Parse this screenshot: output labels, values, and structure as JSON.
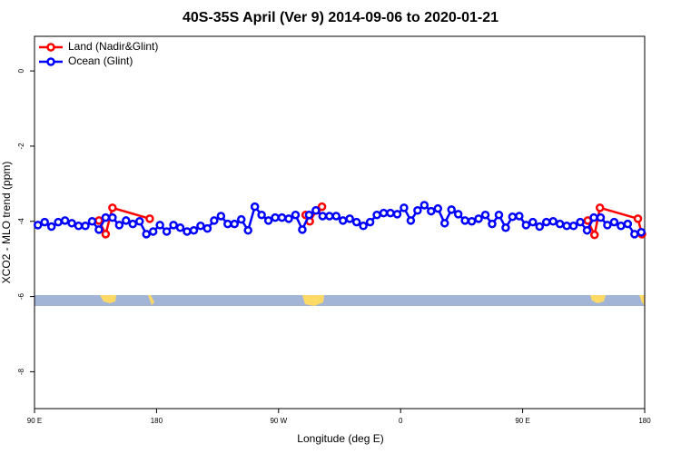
{
  "chart_data": {
    "type": "line",
    "title": "40S-35S April (Ver 9)   2014-09-06 to 2020-01-21",
    "x_label": "Longitude (deg E)",
    "y_label": "XCO2 - MLO trend (ppm)",
    "xlim": [
      90,
      540
    ],
    "ylim": [
      -8.98,
      0.92
    ],
    "xticks": [
      {
        "value": 90,
        "label": "90 E"
      },
      180,
      {
        "value": 270,
        "label": "90 W"
      },
      {
        "value": 360,
        "label": "0"
      },
      {
        "value": 450,
        "label": "90 E"
      },
      {
        "value": 540,
        "label": "180"
      }
    ],
    "yticks": [
      0,
      -2,
      -4,
      -6,
      -8
    ],
    "legend": "top-left",
    "series": [
      {
        "name": "Land (Nadir&Glint)",
        "color": "#ff0000",
        "x": [
          137.5,
          142.5,
          147.5,
          175,
          null,
          290,
          293,
          298,
          302,
          null,
          498,
          503,
          507,
          535,
          538
        ],
        "values": [
          -3.98,
          -4.34,
          -3.64,
          -3.93,
          null,
          -3.83,
          -4.0,
          -3.71,
          -3.61,
          null,
          -3.98,
          -4.36,
          -3.64,
          -3.93,
          -4.34
        ]
      },
      {
        "name": "Ocean (Glint)",
        "color": "#0000ff",
        "x": [
          92.5,
          97.5,
          102.5,
          107.5,
          112.5,
          117.5,
          122.5,
          127.5,
          132.5,
          137.5,
          142.5,
          147.5,
          152.5,
          157.5,
          162.5,
          167.5,
          172.5,
          177.5,
          182.5,
          187.5,
          192.5,
          197.5,
          202.5,
          207.5,
          212.5,
          217.5,
          222.5,
          227.5,
          232.5,
          237.5,
          242.5,
          247.5,
          252.5,
          257.5,
          262.5,
          267.5,
          272.5,
          277.5,
          282.5,
          287.5,
          292.5,
          297.5,
          302.5,
          307.5,
          312.5,
          317.5,
          322.5,
          327.5,
          332.5,
          337.5,
          342.5,
          347.5,
          352.5,
          357.5,
          362.5,
          367.5,
          372.5,
          377.5,
          382.5,
          387.5,
          392.5,
          397.5,
          402.5,
          407.5,
          412.5,
          417.5,
          422.5,
          427.5,
          432.5,
          437.5,
          442.5,
          447.5,
          452.5,
          457.5,
          462.5,
          467.5,
          472.5,
          477.5,
          482.5,
          487.5,
          492.5,
          497.5,
          502.5,
          507.5,
          512.5,
          517.5,
          522.5,
          527.5,
          532.5,
          537.5
        ],
        "values": [
          -4.1,
          -4.02,
          -4.14,
          -4.02,
          -3.98,
          -4.05,
          -4.12,
          -4.12,
          -4.0,
          -4.22,
          -3.9,
          -3.9,
          -4.1,
          -3.98,
          -4.07,
          -4.0,
          -4.34,
          -4.27,
          -4.1,
          -4.27,
          -4.1,
          -4.17,
          -4.27,
          -4.24,
          -4.12,
          -4.19,
          -3.98,
          -3.86,
          -4.07,
          -4.07,
          -3.95,
          -4.24,
          -3.61,
          -3.83,
          -3.98,
          -3.9,
          -3.9,
          -3.93,
          -3.83,
          -4.22,
          -3.83,
          -3.71,
          -3.86,
          -3.86,
          -3.86,
          -3.98,
          -3.93,
          -4.02,
          -4.12,
          -4.02,
          -3.83,
          -3.78,
          -3.78,
          -3.81,
          -3.64,
          -3.98,
          -3.71,
          -3.57,
          -3.73,
          -3.66,
          -4.05,
          -3.69,
          -3.81,
          -3.98,
          -4.0,
          -3.93,
          -3.83,
          -4.07,
          -3.83,
          -4.17,
          -3.88,
          -3.86,
          -4.1,
          -4.02,
          -4.14,
          -4.02,
          -4.0,
          -4.07,
          -4.12,
          -4.12,
          -4.02,
          -4.24,
          -3.9,
          -3.9,
          -4.1,
          -4.02,
          -4.12,
          -4.07,
          -4.34,
          -4.29
        ]
      }
    ]
  }
}
